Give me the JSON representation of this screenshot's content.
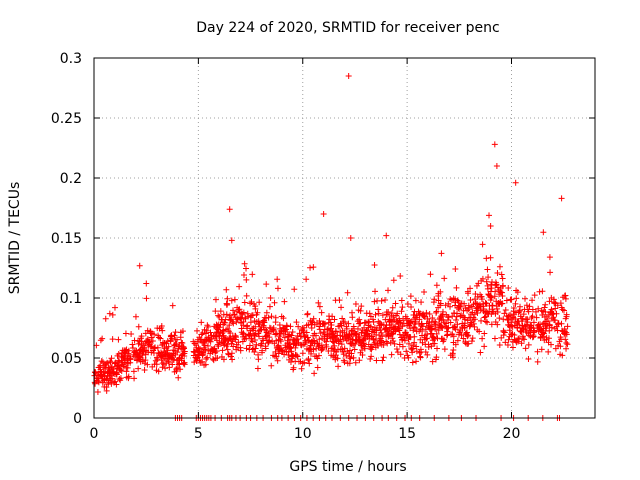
{
  "chart_data": {
    "type": "scatter",
    "title": "Day 224 of 2020, SRMTID for receiver penc",
    "xlabel": "GPS time / hours",
    "ylabel": "SRMTID / TECUs",
    "xlim": [
      0,
      24
    ],
    "ylim": [
      0,
      0.3
    ],
    "grid": true,
    "marker": "+",
    "series_color": "#ff0000",
    "x_ticks": [
      0,
      5,
      10,
      15,
      20
    ],
    "y_ticks": [
      0,
      0.05,
      0.1,
      0.15,
      0.2,
      0.25,
      0.3
    ],
    "x_tick_labels": [
      "0",
      "5",
      "10",
      "15",
      "20"
    ],
    "y_tick_labels": [
      "0",
      "0.05",
      "0.1",
      "0.15",
      "0.2",
      "0.25",
      "0.3"
    ],
    "trend": {
      "x": [
        0,
        1,
        2,
        3,
        4,
        4.8,
        5.5,
        6,
        7,
        8,
        9,
        10,
        11,
        12,
        13,
        14,
        15,
        16,
        17,
        18,
        19,
        19.5,
        20,
        21,
        22,
        22.7
      ],
      "y": [
        0.035,
        0.04,
        0.055,
        0.06,
        0.055,
        0.05,
        0.06,
        0.07,
        0.08,
        0.07,
        0.065,
        0.06,
        0.07,
        0.065,
        0.07,
        0.075,
        0.07,
        0.075,
        0.08,
        0.08,
        0.1,
        0.09,
        0.08,
        0.075,
        0.08,
        0.08
      ]
    },
    "spikes": [
      {
        "x": 12.2,
        "y": 0.285
      },
      {
        "x": 19.2,
        "y": 0.228
      },
      {
        "x": 19.3,
        "y": 0.21
      },
      {
        "x": 20.2,
        "y": 0.196
      },
      {
        "x": 22.4,
        "y": 0.183
      },
      {
        "x": 6.5,
        "y": 0.174
      },
      {
        "x": 11.0,
        "y": 0.17
      },
      {
        "x": 12.3,
        "y": 0.15
      },
      {
        "x": 14.0,
        "y": 0.152
      },
      {
        "x": 6.6,
        "y": 0.148
      },
      {
        "x": 19.0,
        "y": 0.16
      }
    ],
    "zero_points_x": [
      3.9,
      4.0,
      4.1,
      4.2,
      4.9,
      5.0,
      5.1,
      5.2,
      5.3,
      5.4,
      5.5,
      5.6,
      5.8,
      6.1,
      6.4,
      6.5,
      6.6,
      6.8,
      7.0,
      7.3,
      7.5,
      7.8,
      8.1,
      8.5,
      8.8,
      9.0,
      9.3,
      9.6,
      9.9,
      10.2,
      10.5,
      10.8,
      11.1,
      11.4,
      11.8,
      12.2,
      12.6,
      13.0,
      13.4,
      13.8,
      14.1,
      14.5,
      14.9,
      15.2,
      15.6,
      16.3,
      17.0,
      17.6,
      18.3,
      19.5,
      20.1,
      20.8,
      21.5,
      22.2,
      22.3
    ]
  }
}
